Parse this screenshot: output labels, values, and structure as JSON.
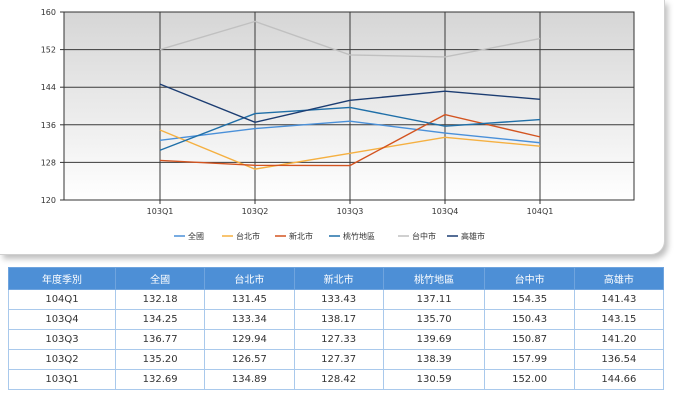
{
  "chart_data": {
    "type": "line",
    "categories": [
      "103Q1",
      "103Q2",
      "103Q3",
      "103Q4",
      "104Q1"
    ],
    "ylim": [
      120,
      160
    ],
    "yticks": [
      120,
      128,
      136,
      144,
      152,
      160
    ],
    "grid": true,
    "legend_position": "bottom",
    "series": [
      {
        "name": "全國",
        "color": "#4a90d9",
        "values": [
          132.69,
          135.2,
          136.77,
          134.25,
          132.18
        ]
      },
      {
        "name": "台北市",
        "color": "#f5b041",
        "values": [
          134.89,
          126.57,
          129.94,
          133.34,
          131.45
        ]
      },
      {
        "name": "新北市",
        "color": "#d35420",
        "values": [
          128.42,
          127.37,
          127.33,
          138.17,
          133.43
        ]
      },
      {
        "name": "桃竹地區",
        "color": "#1f6fa8",
        "values": [
          130.59,
          138.39,
          139.69,
          135.7,
          137.11
        ]
      },
      {
        "name": "台中市",
        "color": "#c0c0c0",
        "values": [
          152.0,
          157.99,
          150.87,
          150.43,
          154.35
        ]
      },
      {
        "name": "高雄市",
        "color": "#1c3d72",
        "values": [
          144.66,
          136.54,
          141.2,
          143.15,
          141.43
        ]
      }
    ]
  },
  "table": {
    "headers": [
      "年度季別",
      "全國",
      "台北市",
      "新北市",
      "桃竹地區",
      "台中市",
      "高雄市"
    ],
    "rows": [
      [
        "104Q1",
        "132.18",
        "131.45",
        "133.43",
        "137.11",
        "154.35",
        "141.43"
      ],
      [
        "103Q4",
        "134.25",
        "133.34",
        "138.17",
        "135.70",
        "150.43",
        "143.15"
      ],
      [
        "103Q3",
        "136.77",
        "129.94",
        "127.33",
        "139.69",
        "150.87",
        "141.20"
      ],
      [
        "103Q2",
        "135.20",
        "126.57",
        "127.37",
        "138.39",
        "157.99",
        "136.54"
      ],
      [
        "103Q1",
        "132.69",
        "134.89",
        "128.42",
        "130.59",
        "152.00",
        "144.66"
      ]
    ]
  }
}
